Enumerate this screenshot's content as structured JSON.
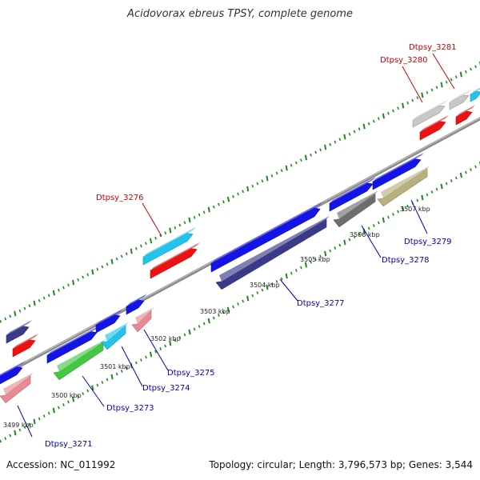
{
  "title": "Acidovorax ebreus TPSY, complete genome",
  "footer": {
    "accession": "Accession: NC_011992",
    "summary": "Topology: circular; Length: 3,796,573 bp; Genes: 3,544"
  },
  "scale_labels": [
    "3499 kbp",
    "3500 kbp",
    "3501 kbp",
    "3502 kbp",
    "3503 kbp",
    "3504 kbp",
    "3505 kbp",
    "3506 kbp",
    "3507 kbp"
  ],
  "gene_labels": [
    {
      "text": "Dtpsy_3271",
      "strand": "reverse"
    },
    {
      "text": "Dtpsy_3273",
      "strand": "reverse"
    },
    {
      "text": "Dtpsy_3274",
      "strand": "reverse"
    },
    {
      "text": "Dtpsy_3275",
      "strand": "reverse"
    },
    {
      "text": "Dtpsy_3277",
      "strand": "reverse"
    },
    {
      "text": "Dtpsy_3278",
      "strand": "reverse"
    },
    {
      "text": "Dtpsy_3279",
      "strand": "reverse"
    },
    {
      "text": "Dtpsy_3276",
      "strand": "forward"
    },
    {
      "text": "Dtpsy_3280",
      "strand": "forward"
    },
    {
      "text": "Dtpsy_3281",
      "strand": "forward"
    }
  ],
  "colors": {
    "forward_label": "#cc0000",
    "reverse_label": "#0000bb",
    "backbone": "#8a8a8a",
    "tick": "#1e8a1e",
    "cds_blue": "#1414e6",
    "cds_red": "#ee1111",
    "cds_cyan": "#22c4ee",
    "cds_green": "#44c844",
    "cds_pink": "#e88a94",
    "cds_navy": "#3a3a8a",
    "cds_gray": "#6e6e6e",
    "cds_lightgray": "#c8c8c8",
    "cds_olive": "#b8b080"
  }
}
